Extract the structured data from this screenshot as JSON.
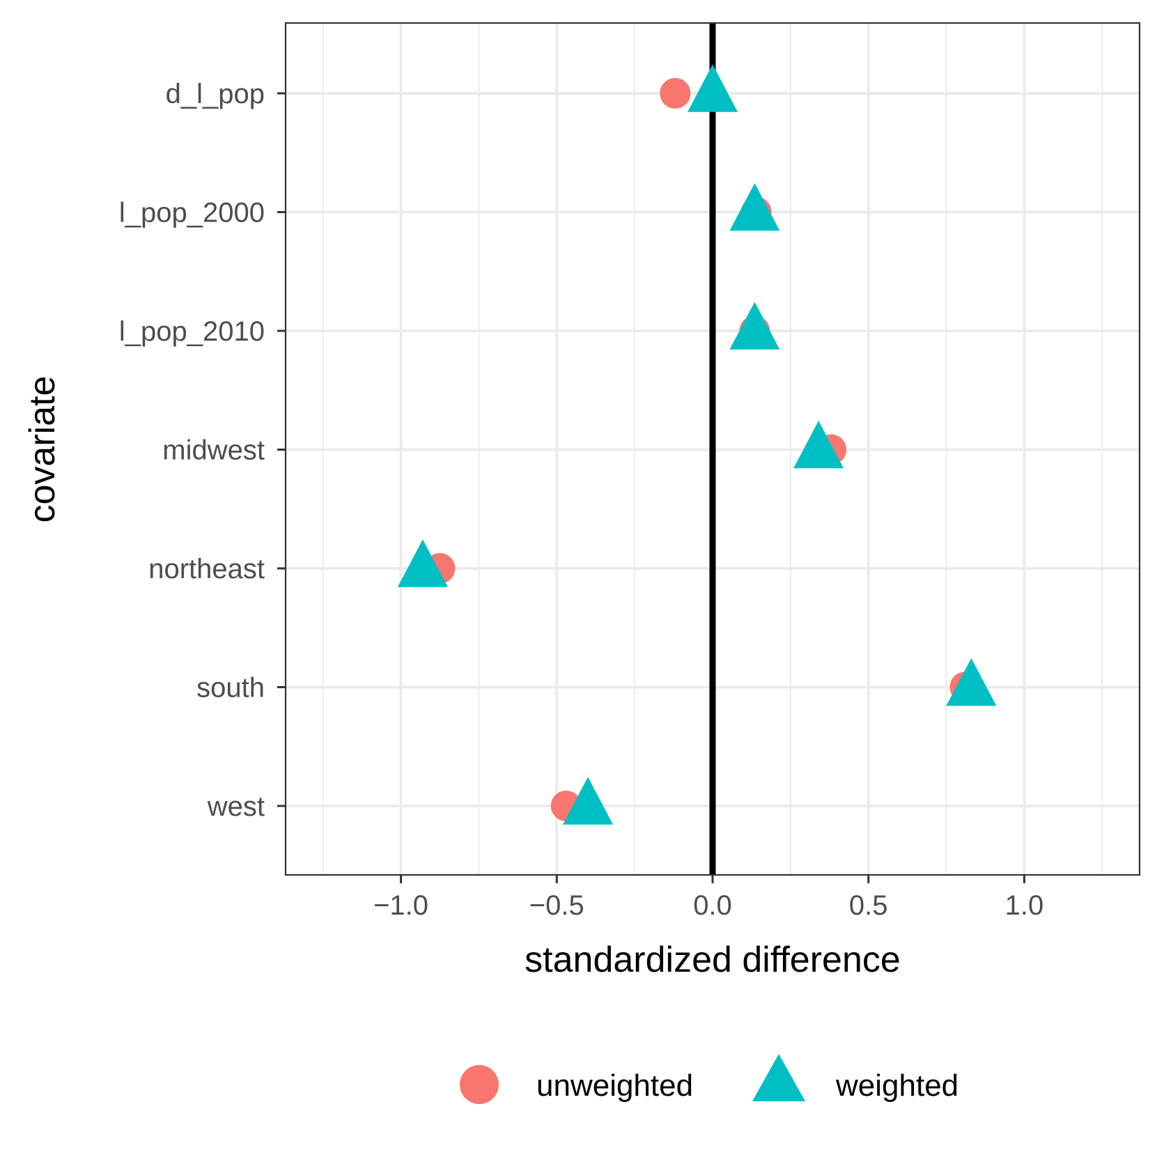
{
  "chart_data": {
    "type": "scatter",
    "title": "",
    "xlabel": "standardized difference",
    "ylabel": "covariate",
    "xlim": [
      -1.37,
      1.37
    ],
    "xticks": [
      -1.0,
      -0.5,
      0.0,
      0.5,
      1.0
    ],
    "xtick_labels": [
      "−1.0",
      "−0.5",
      "0.0",
      "0.5",
      "1.0"
    ],
    "categories": [
      "d_l_pop",
      "l_pop_2000",
      "l_pop_2010",
      "midwest",
      "northeast",
      "south",
      "west"
    ],
    "reference_line_x": 0,
    "grid": true,
    "legend_position": "bottom",
    "series": [
      {
        "name": "unweighted",
        "marker": "circle",
        "color": "#F8766D",
        "values": [
          -0.12,
          0.14,
          0.135,
          0.38,
          -0.875,
          0.81,
          -0.47
        ]
      },
      {
        "name": "weighted",
        "marker": "triangle",
        "color": "#00BFC4",
        "values": [
          0.0,
          0.135,
          0.135,
          0.34,
          -0.93,
          0.83,
          -0.4
        ]
      }
    ]
  }
}
